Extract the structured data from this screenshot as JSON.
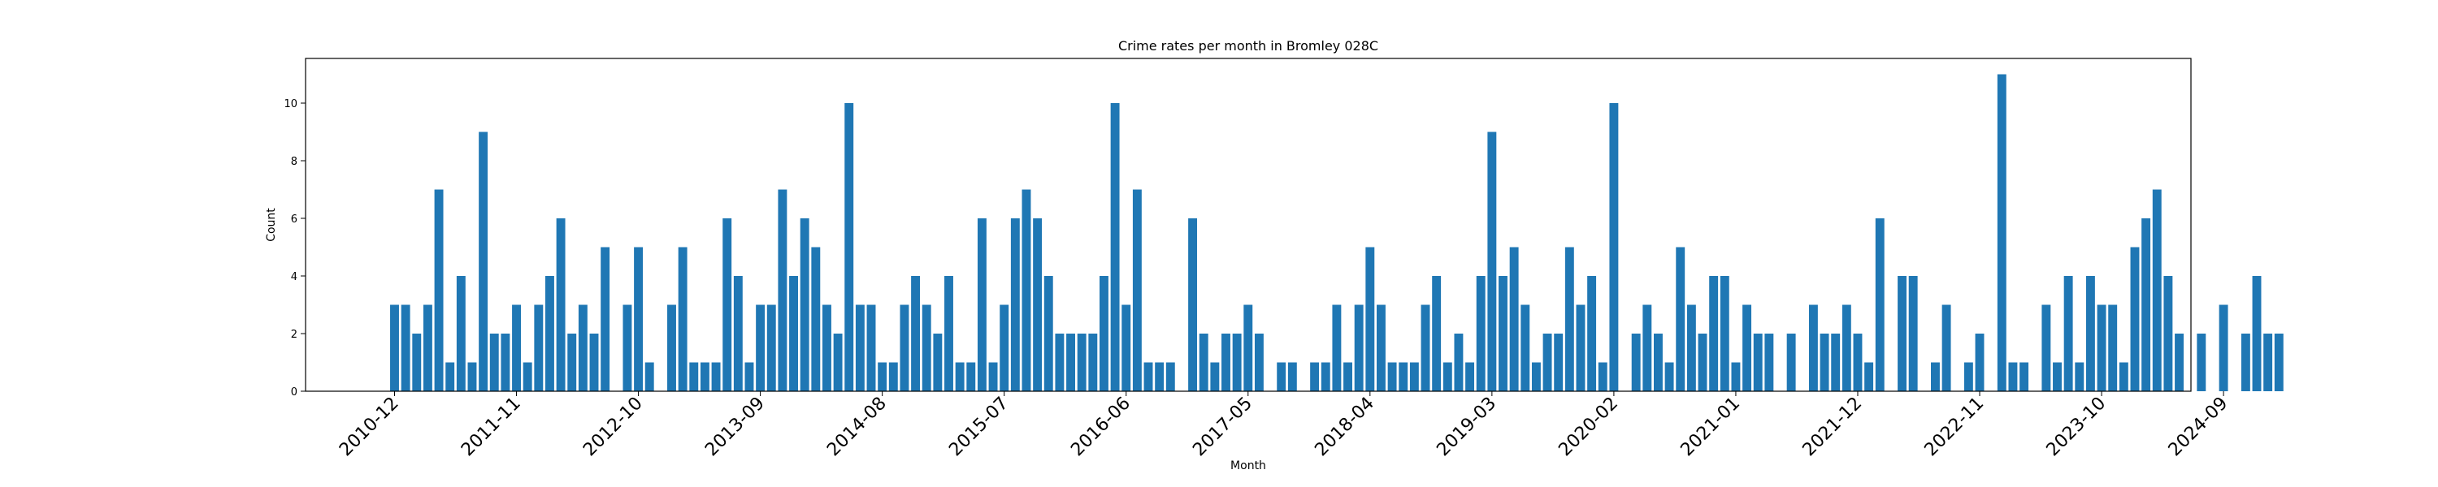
{
  "chart_data": {
    "type": "bar",
    "title": "Crime rates per month in Bromley 028C",
    "xlabel": "Month",
    "ylabel": "Count",
    "ylim": [
      0,
      11.55
    ],
    "yticks": [
      0,
      2,
      4,
      6,
      8,
      10
    ],
    "grid": false,
    "start_month": "2010-12",
    "xtick_labels": [
      "2010-12",
      "2011-11",
      "2012-10",
      "2013-09",
      "2014-08",
      "2015-07",
      "2016-06",
      "2017-05",
      "2018-04",
      "2019-03",
      "2020-02",
      "2021-01",
      "2021-12",
      "2022-11",
      "2023-10",
      "2024-09"
    ],
    "values": [
      3,
      3,
      2,
      3,
      7,
      1,
      4,
      1,
      9,
      2,
      2,
      3,
      1,
      3,
      4,
      6,
      2,
      3,
      2,
      5,
      0,
      3,
      5,
      1,
      0,
      3,
      5,
      1,
      1,
      1,
      6,
      4,
      1,
      3,
      3,
      7,
      4,
      6,
      5,
      3,
      2,
      10,
      3,
      3,
      1,
      1,
      3,
      4,
      3,
      2,
      4,
      1,
      1,
      6,
      1,
      3,
      6,
      7,
      6,
      4,
      2,
      2,
      2,
      2,
      4,
      10,
      3,
      7,
      1,
      1,
      1,
      0,
      6,
      2,
      1,
      2,
      2,
      3,
      2,
      0,
      1,
      1,
      0,
      1,
      1,
      3,
      1,
      3,
      5,
      3,
      1,
      1,
      1,
      3,
      4,
      1,
      2,
      1,
      4,
      9,
      4,
      5,
      3,
      1,
      2,
      2,
      5,
      3,
      4,
      1,
      10,
      0,
      2,
      3,
      2,
      1,
      5,
      3,
      2,
      4,
      4,
      1,
      3,
      2,
      2,
      0,
      2,
      0,
      3,
      2,
      2,
      3,
      2,
      1,
      6,
      0,
      4,
      4,
      0,
      1,
      3,
      0,
      1,
      2,
      0,
      11,
      1,
      1,
      0,
      3,
      1,
      4,
      1,
      4,
      3,
      3,
      1,
      5,
      6,
      7,
      4,
      2,
      0,
      2,
      0,
      3,
      0,
      2,
      4,
      2,
      2
    ]
  }
}
